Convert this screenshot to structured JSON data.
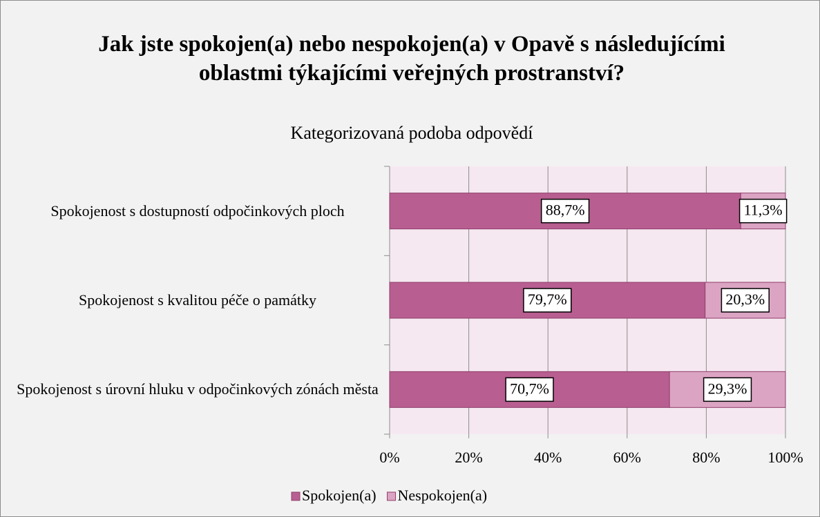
{
  "chart_data": {
    "type": "stacked-barh",
    "title": "Jak jste spokojen(a) nebo nespokojen(a) v Opavě s následujícími oblastmi týkajícími veřejných prostranství?",
    "subtitle": "Kategorizovaná podoba odpovědí",
    "categories": [
      "Spokojenost s dostupností odpočinkových ploch",
      "Spokojenost s kvalitou péče o památky",
      "Spokojenost s úrovní hluku v odpočinkových zónách města"
    ],
    "series": [
      {
        "name": "Spokojen(a)",
        "color": "#b85e91",
        "values": [
          88.7,
          79.7,
          70.7
        ],
        "value_labels": [
          "88,7%",
          "79,7%",
          "70,7%"
        ]
      },
      {
        "name": "Nespokojen(a)",
        "color": "#dca4c3",
        "values": [
          11.3,
          20.3,
          29.3
        ],
        "value_labels": [
          "11,3%",
          "20,3%",
          "29,3%"
        ]
      }
    ],
    "xlim": [
      0,
      100
    ],
    "xticks": [
      {
        "value": 0,
        "label": "0%"
      },
      {
        "value": 20,
        "label": "20%"
      },
      {
        "value": 40,
        "label": "40%"
      },
      {
        "value": 60,
        "label": "60%"
      },
      {
        "value": 80,
        "label": "80%"
      },
      {
        "value": 100,
        "label": "100%"
      }
    ],
    "grid": true,
    "legend": "bottom"
  }
}
